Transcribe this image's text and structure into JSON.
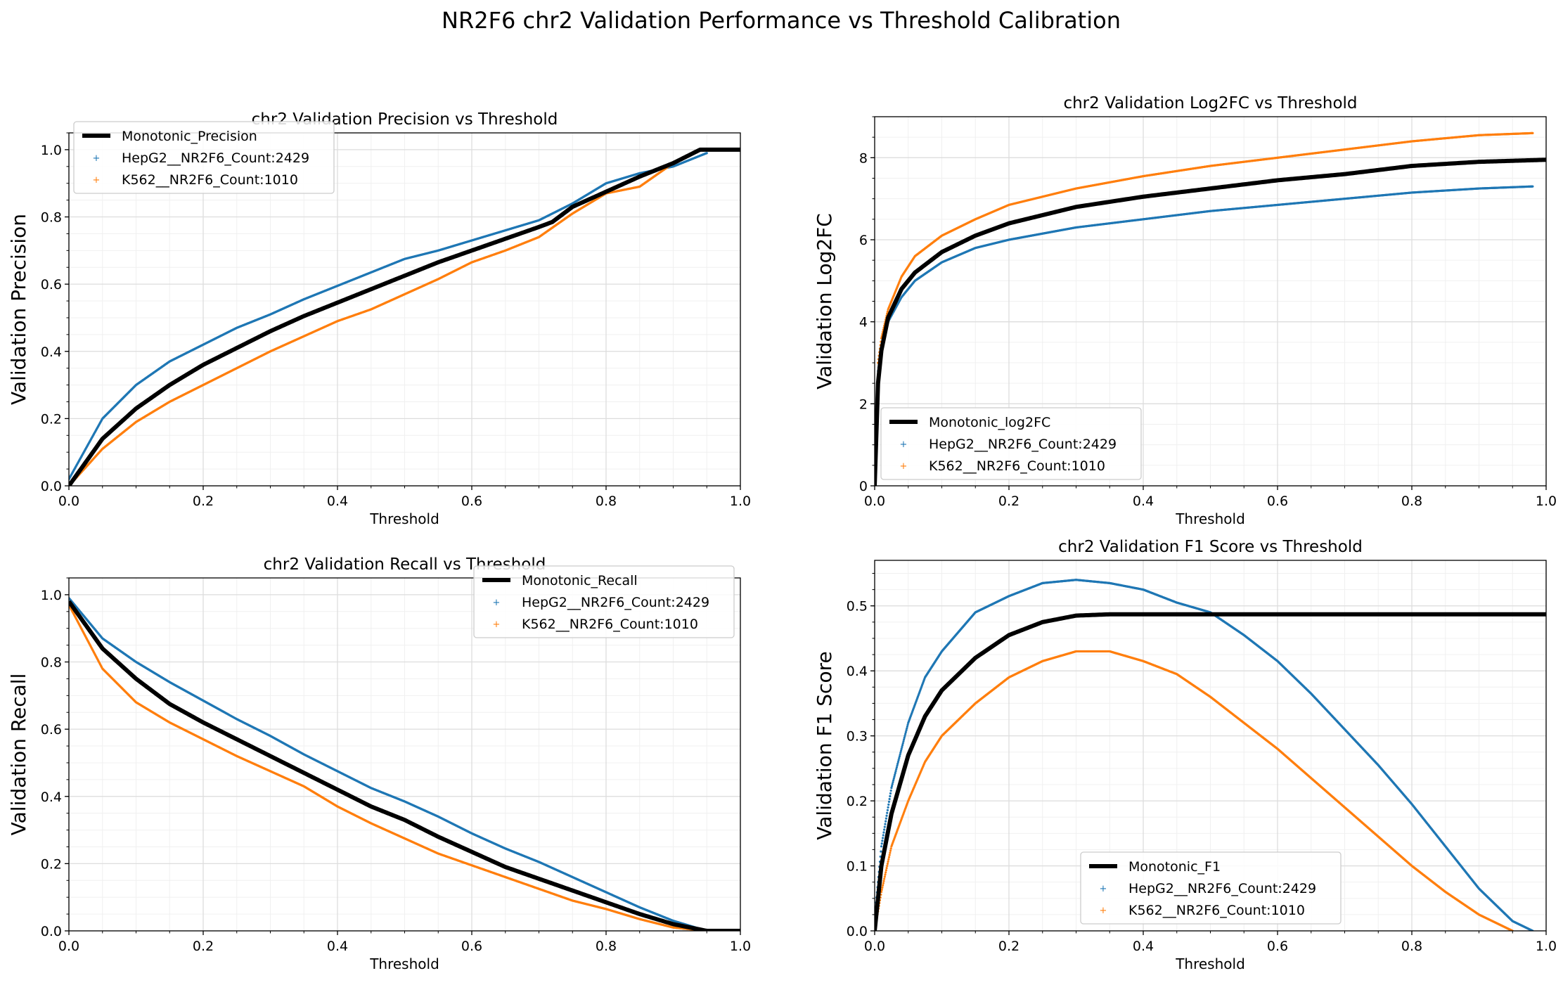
{
  "figure": {
    "title": "NR2F6 chr2 Validation Performance vs Threshold Calibration"
  },
  "colors": {
    "hepg2": "#1f77b4",
    "k562": "#ff7f0e",
    "monotonic": "#000000",
    "grid_major": "#dddddd",
    "grid_minor": "#f0f0f0"
  },
  "chart_data": [
    {
      "id": "precision",
      "type": "line",
      "title": "chr2 Validation Precision vs Threshold",
      "xlabel": "Threshold",
      "ylabel": "Validation Precision",
      "xlim": [
        0,
        1
      ],
      "ylim": [
        0,
        1.05
      ],
      "xticks": [
        0.0,
        0.2,
        0.4,
        0.6,
        0.8,
        1.0
      ],
      "xtick_labels": [
        "0.0",
        "0.2",
        "0.4",
        "0.6",
        "0.8",
        "1.0"
      ],
      "yticks": [
        0.0,
        0.2,
        0.4,
        0.6,
        0.8,
        1.0
      ],
      "ytick_labels": [
        "0.0",
        "0.2",
        "0.4",
        "0.6",
        "0.8",
        "1.0"
      ],
      "grid": true,
      "legend_position": "upper-left",
      "series": [
        {
          "name": "Monotonic_Precision",
          "style": "line",
          "color": "#000000",
          "x": [
            0,
            0.05,
            0.1,
            0.15,
            0.2,
            0.25,
            0.3,
            0.35,
            0.4,
            0.45,
            0.5,
            0.55,
            0.6,
            0.65,
            0.7,
            0.72,
            0.75,
            0.8,
            0.85,
            0.9,
            0.94,
            1.0
          ],
          "y": [
            0.0,
            0.14,
            0.23,
            0.3,
            0.36,
            0.41,
            0.46,
            0.505,
            0.545,
            0.585,
            0.625,
            0.665,
            0.7,
            0.735,
            0.77,
            0.785,
            0.83,
            0.875,
            0.92,
            0.96,
            1.0,
            1.0
          ]
        },
        {
          "name": "HepG2__NR2F6_Count:2429",
          "style": "markers",
          "color": "#1f77b4",
          "x": [
            0,
            0.05,
            0.1,
            0.15,
            0.2,
            0.25,
            0.3,
            0.35,
            0.4,
            0.45,
            0.5,
            0.55,
            0.6,
            0.65,
            0.7,
            0.75,
            0.8,
            0.85,
            0.9,
            0.95
          ],
          "y": [
            0.02,
            0.2,
            0.3,
            0.37,
            0.42,
            0.47,
            0.51,
            0.555,
            0.595,
            0.635,
            0.675,
            0.7,
            0.73,
            0.76,
            0.79,
            0.84,
            0.9,
            0.93,
            0.95,
            0.99
          ]
        },
        {
          "name": "K562__NR2F6_Count:1010",
          "style": "markers",
          "color": "#ff7f0e",
          "x": [
            0,
            0.05,
            0.1,
            0.15,
            0.2,
            0.25,
            0.3,
            0.35,
            0.4,
            0.45,
            0.5,
            0.55,
            0.6,
            0.65,
            0.7,
            0.75,
            0.8,
            0.85,
            0.9,
            0.94
          ],
          "y": [
            0.0,
            0.11,
            0.19,
            0.25,
            0.3,
            0.35,
            0.4,
            0.445,
            0.49,
            0.525,
            0.57,
            0.615,
            0.665,
            0.7,
            0.74,
            0.81,
            0.87,
            0.89,
            0.96,
            1.0
          ]
        }
      ]
    },
    {
      "id": "log2fc",
      "type": "line",
      "title": "chr2 Validation Log2FC vs Threshold",
      "xlabel": "Threshold",
      "ylabel": "Validation Log2FC",
      "xlim": [
        0,
        1
      ],
      "ylim": [
        0,
        9
      ],
      "xticks": [
        0.0,
        0.2,
        0.4,
        0.6,
        0.8,
        1.0
      ],
      "xtick_labels": [
        "0.0",
        "0.2",
        "0.4",
        "0.6",
        "0.8",
        "1.0"
      ],
      "yticks": [
        0,
        2,
        4,
        6,
        8
      ],
      "ytick_labels": [
        "0",
        "2",
        "4",
        "6",
        "8"
      ],
      "grid": true,
      "legend_position": "lower-left",
      "series": [
        {
          "name": "Monotonic_log2FC",
          "style": "line",
          "color": "#000000",
          "x": [
            0,
            0.005,
            0.01,
            0.02,
            0.04,
            0.06,
            0.1,
            0.15,
            0.2,
            0.3,
            0.4,
            0.5,
            0.6,
            0.7,
            0.8,
            0.9,
            1.0
          ],
          "y": [
            0.0,
            2.5,
            3.3,
            4.1,
            4.8,
            5.2,
            5.7,
            6.1,
            6.4,
            6.8,
            7.05,
            7.25,
            7.45,
            7.6,
            7.8,
            7.9,
            7.95
          ]
        },
        {
          "name": "HepG2__NR2F6_Count:2429",
          "style": "markers",
          "color": "#1f77b4",
          "x": [
            0.005,
            0.01,
            0.02,
            0.04,
            0.06,
            0.1,
            0.15,
            0.2,
            0.3,
            0.4,
            0.5,
            0.6,
            0.7,
            0.8,
            0.9,
            0.98
          ],
          "y": [
            2.8,
            3.4,
            4.0,
            4.6,
            5.0,
            5.45,
            5.8,
            6.0,
            6.3,
            6.5,
            6.7,
            6.85,
            7.0,
            7.15,
            7.25,
            7.3
          ]
        },
        {
          "name": "K562__NR2F6_Count:1010",
          "style": "markers",
          "color": "#ff7f0e",
          "x": [
            0.005,
            0.01,
            0.02,
            0.04,
            0.06,
            0.1,
            0.15,
            0.2,
            0.3,
            0.4,
            0.5,
            0.6,
            0.7,
            0.8,
            0.9,
            0.98
          ],
          "y": [
            3.0,
            3.6,
            4.3,
            5.1,
            5.6,
            6.1,
            6.5,
            6.85,
            7.25,
            7.55,
            7.8,
            8.0,
            8.2,
            8.4,
            8.55,
            8.6
          ]
        }
      ]
    },
    {
      "id": "recall",
      "type": "line",
      "title": "chr2 Validation Recall vs Threshold",
      "xlabel": "Threshold",
      "ylabel": "Validation Recall",
      "xlim": [
        0,
        1
      ],
      "ylim": [
        0,
        1.05
      ],
      "xticks": [
        0.0,
        0.2,
        0.4,
        0.6,
        0.8,
        1.0
      ],
      "xtick_labels": [
        "0.0",
        "0.2",
        "0.4",
        "0.6",
        "0.8",
        "1.0"
      ],
      "yticks": [
        0.0,
        0.2,
        0.4,
        0.6,
        0.8,
        1.0
      ],
      "ytick_labels": [
        "0.0",
        "0.2",
        "0.4",
        "0.6",
        "0.8",
        "1.0"
      ],
      "grid": true,
      "legend_position": "upper-right",
      "series": [
        {
          "name": "Monotonic_Recall",
          "style": "line",
          "color": "#000000",
          "x": [
            0,
            0.05,
            0.1,
            0.15,
            0.2,
            0.25,
            0.3,
            0.35,
            0.4,
            0.45,
            0.5,
            0.55,
            0.6,
            0.65,
            0.7,
            0.75,
            0.8,
            0.85,
            0.9,
            0.95,
            1.0
          ],
          "y": [
            0.98,
            0.84,
            0.75,
            0.675,
            0.62,
            0.57,
            0.52,
            0.47,
            0.42,
            0.37,
            0.33,
            0.28,
            0.235,
            0.19,
            0.155,
            0.12,
            0.085,
            0.05,
            0.02,
            0.0,
            0.0
          ]
        },
        {
          "name": "HepG2__NR2F6_Count:2429",
          "style": "markers",
          "color": "#1f77b4",
          "x": [
            0,
            0.05,
            0.1,
            0.15,
            0.2,
            0.25,
            0.3,
            0.35,
            0.4,
            0.45,
            0.5,
            0.55,
            0.6,
            0.65,
            0.7,
            0.75,
            0.8,
            0.85,
            0.9,
            0.95
          ],
          "y": [
            0.99,
            0.87,
            0.8,
            0.74,
            0.685,
            0.63,
            0.58,
            0.525,
            0.475,
            0.425,
            0.385,
            0.34,
            0.29,
            0.245,
            0.205,
            0.16,
            0.115,
            0.07,
            0.03,
            0.0
          ]
        },
        {
          "name": "K562__NR2F6_Count:1010",
          "style": "markers",
          "color": "#ff7f0e",
          "x": [
            0,
            0.05,
            0.1,
            0.15,
            0.2,
            0.25,
            0.3,
            0.35,
            0.4,
            0.45,
            0.5,
            0.55,
            0.6,
            0.65,
            0.7,
            0.75,
            0.8,
            0.85,
            0.9,
            0.95
          ],
          "y": [
            0.97,
            0.78,
            0.68,
            0.62,
            0.57,
            0.52,
            0.475,
            0.43,
            0.37,
            0.32,
            0.275,
            0.23,
            0.195,
            0.16,
            0.125,
            0.09,
            0.065,
            0.035,
            0.01,
            0.0
          ]
        }
      ]
    },
    {
      "id": "f1",
      "type": "line",
      "title": "chr2 Validation F1 Score vs Threshold",
      "xlabel": "Threshold",
      "ylabel": "Validation F1 Score",
      "xlim": [
        0,
        1
      ],
      "ylim": [
        0,
        0.57
      ],
      "xticks": [
        0.0,
        0.2,
        0.4,
        0.6,
        0.8,
        1.0
      ],
      "xtick_labels": [
        "0.0",
        "0.2",
        "0.4",
        "0.6",
        "0.8",
        "1.0"
      ],
      "yticks": [
        0.0,
        0.1,
        0.2,
        0.3,
        0.4,
        0.5
      ],
      "ytick_labels": [
        "0.0",
        "0.1",
        "0.2",
        "0.3",
        "0.4",
        "0.5"
      ],
      "grid": true,
      "legend_position": "lower-center",
      "series": [
        {
          "name": "Monotonic_F1",
          "style": "line",
          "color": "#000000",
          "x": [
            0,
            0.01,
            0.025,
            0.05,
            0.075,
            0.1,
            0.15,
            0.2,
            0.25,
            0.3,
            0.35,
            0.4,
            0.5,
            0.6,
            0.7,
            0.8,
            0.9,
            1.0
          ],
          "y": [
            0.0,
            0.1,
            0.18,
            0.27,
            0.33,
            0.37,
            0.42,
            0.455,
            0.475,
            0.485,
            0.487,
            0.487,
            0.487,
            0.487,
            0.487,
            0.487,
            0.487,
            0.487
          ]
        },
        {
          "name": "HepG2__NR2F6_Count:2429",
          "style": "markers",
          "color": "#1f77b4",
          "x": [
            0,
            0.01,
            0.025,
            0.05,
            0.075,
            0.1,
            0.15,
            0.2,
            0.25,
            0.3,
            0.35,
            0.4,
            0.45,
            0.5,
            0.55,
            0.6,
            0.65,
            0.7,
            0.75,
            0.8,
            0.85,
            0.9,
            0.95,
            0.98
          ],
          "y": [
            0.02,
            0.13,
            0.22,
            0.32,
            0.39,
            0.43,
            0.49,
            0.515,
            0.535,
            0.54,
            0.535,
            0.525,
            0.505,
            0.49,
            0.455,
            0.415,
            0.365,
            0.31,
            0.255,
            0.195,
            0.13,
            0.065,
            0.015,
            0.0
          ]
        },
        {
          "name": "K562__NR2F6_Count:1010",
          "style": "markers",
          "color": "#ff7f0e",
          "x": [
            0,
            0.01,
            0.025,
            0.05,
            0.075,
            0.1,
            0.15,
            0.2,
            0.25,
            0.3,
            0.35,
            0.4,
            0.45,
            0.5,
            0.55,
            0.6,
            0.65,
            0.7,
            0.75,
            0.8,
            0.85,
            0.9,
            0.95
          ],
          "y": [
            0.0,
            0.06,
            0.13,
            0.2,
            0.26,
            0.3,
            0.35,
            0.39,
            0.415,
            0.43,
            0.43,
            0.415,
            0.395,
            0.36,
            0.32,
            0.28,
            0.235,
            0.19,
            0.145,
            0.1,
            0.06,
            0.025,
            0.0
          ]
        }
      ]
    }
  ]
}
